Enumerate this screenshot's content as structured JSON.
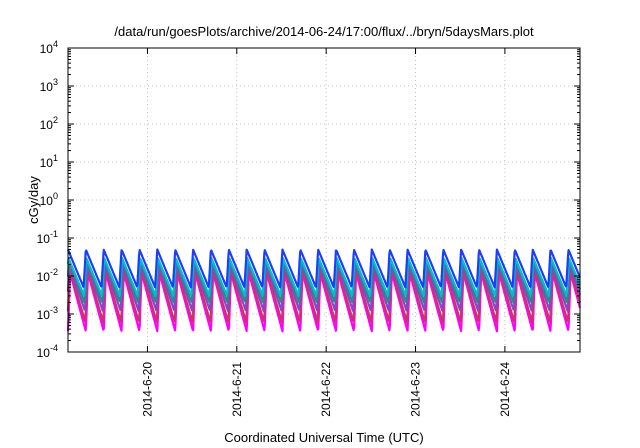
{
  "chart_data": {
    "type": "line",
    "title": "/data/run/goesPlots/archive/2014-06-24/17:00/flux/../bryn/5daysMars.plot",
    "xlabel": "Coordinated Universal Time (UTC)",
    "ylabel": "cGy/day",
    "yscale": "log",
    "ylim": [
      0.0001,
      10000
    ],
    "xlim": [
      "2014-06-19 02:40",
      "2014-06-24 20:10"
    ],
    "grid": true,
    "y_ticks": [
      {
        "base": "10",
        "exp": "-4",
        "value": 0.0001
      },
      {
        "base": "10",
        "exp": "-3",
        "value": 0.001
      },
      {
        "base": "10",
        "exp": "-2",
        "value": 0.01
      },
      {
        "base": "10",
        "exp": "-1",
        "value": 0.1
      },
      {
        "base": "10",
        "exp": "0",
        "value": 1
      },
      {
        "base": "10",
        "exp": "1",
        "value": 10
      },
      {
        "base": "10",
        "exp": "2",
        "value": 100
      },
      {
        "base": "10",
        "exp": "3",
        "value": 1000
      },
      {
        "base": "10",
        "exp": "4",
        "value": 10000
      }
    ],
    "x_ticks": [
      {
        "label": "2014-6-20",
        "value": "2014-06-20 00:00"
      },
      {
        "label": "2014-6-21",
        "value": "2014-06-21 00:00"
      },
      {
        "label": "2014-6-22",
        "value": "2014-06-22 00:00"
      },
      {
        "label": "2014-6-23",
        "value": "2014-06-23 00:00"
      },
      {
        "label": "2014-6-24",
        "value": "2014-06-24 00:00"
      }
    ],
    "oscillation_period_hours": 4.8,
    "series": [
      {
        "color": "#ff00ff",
        "peak": 0.012,
        "trough": 0.00035
      },
      {
        "color": "#cc3366",
        "peak": 0.015,
        "trough": 0.0006
      },
      {
        "color": "#8844cc",
        "peak": 0.02,
        "trough": 0.0012
      },
      {
        "color": "#2a8a8a",
        "peak": 0.025,
        "trough": 0.002
      },
      {
        "color": "#00bcd4",
        "peak": 0.03,
        "trough": 0.003
      },
      {
        "color": "#1e3cff",
        "peak": 0.05,
        "trough": 0.005
      }
    ]
  }
}
